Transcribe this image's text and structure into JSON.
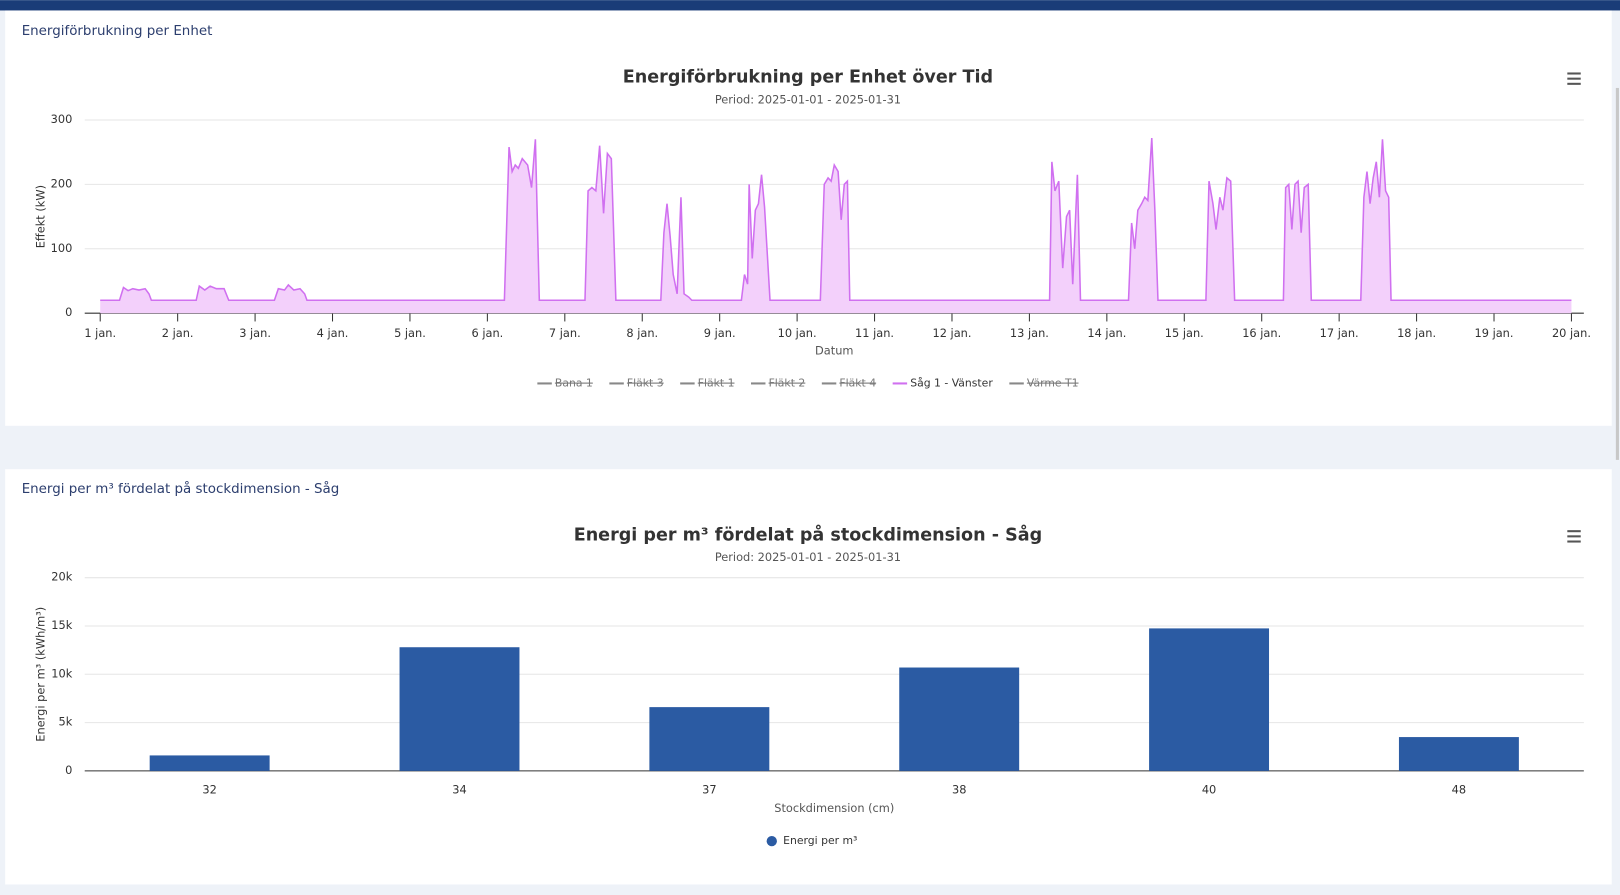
{
  "panels": [
    {
      "title": "Energiförbrukning per Enhet"
    },
    {
      "title": "Energi per m³ fördelat på stockdimension - Såg"
    }
  ],
  "chart_data": [
    {
      "type": "line",
      "title": "Energiförbrukning per Enhet över Tid",
      "subtitle": "Period: 2025-01-01 - 2025-01-31",
      "x_label": "Datum",
      "y_label": "Effekt (kW)",
      "xlim": [
        1,
        20
      ],
      "ylim": [
        0,
        300
      ],
      "yticks": [
        0,
        100,
        200,
        300
      ],
      "grid": true,
      "xticks": [
        {
          "value": 1,
          "label": "1 jan."
        },
        {
          "value": 2,
          "label": "2 jan."
        },
        {
          "value": 3,
          "label": "3 jan."
        },
        {
          "value": 4,
          "label": "4 jan."
        },
        {
          "value": 5,
          "label": "5 jan."
        },
        {
          "value": 6,
          "label": "6 jan."
        },
        {
          "value": 7,
          "label": "7 jan."
        },
        {
          "value": 8,
          "label": "8 jan."
        },
        {
          "value": 9,
          "label": "9 jan."
        },
        {
          "value": 10,
          "label": "10 jan."
        },
        {
          "value": 11,
          "label": "11 jan."
        },
        {
          "value": 12,
          "label": "12 jan."
        },
        {
          "value": 13,
          "label": "13 jan."
        },
        {
          "value": 14,
          "label": "14 jan."
        },
        {
          "value": 15,
          "label": "15 jan."
        },
        {
          "value": 16,
          "label": "16 jan."
        },
        {
          "value": 17,
          "label": "17 jan."
        },
        {
          "value": 18,
          "label": "18 jan."
        },
        {
          "value": 19,
          "label": "19 jan."
        },
        {
          "value": 20,
          "label": "20 jan."
        }
      ],
      "x": [
        1.0,
        1.25,
        1.3,
        1.36,
        1.42,
        1.5,
        1.58,
        1.63,
        1.66,
        2.24,
        2.28,
        2.35,
        2.42,
        2.5,
        2.6,
        2.66,
        3.25,
        3.3,
        3.38,
        3.43,
        3.5,
        3.58,
        3.64,
        3.67,
        6.22,
        6.28,
        6.32,
        6.36,
        6.4,
        6.45,
        6.52,
        6.57,
        6.62,
        6.67,
        7.26,
        7.3,
        7.35,
        7.4,
        7.45,
        7.5,
        7.55,
        7.6,
        7.66,
        8.24,
        8.28,
        8.32,
        8.36,
        8.4,
        8.45,
        8.5,
        8.54,
        8.6,
        8.64,
        9.28,
        9.32,
        9.36,
        9.38,
        9.42,
        9.46,
        9.5,
        9.54,
        9.58,
        9.65,
        10.3,
        10.35,
        10.4,
        10.44,
        10.48,
        10.53,
        10.57,
        10.61,
        10.65,
        10.68,
        13.26,
        13.29,
        13.33,
        13.38,
        13.43,
        13.48,
        13.52,
        13.56,
        13.62,
        13.66,
        14.28,
        14.32,
        14.36,
        14.4,
        14.45,
        14.49,
        14.53,
        14.58,
        14.62,
        14.66,
        15.28,
        15.32,
        15.37,
        15.41,
        15.46,
        15.5,
        15.55,
        15.6,
        15.65,
        16.28,
        16.31,
        16.35,
        16.39,
        16.43,
        16.47,
        16.51,
        16.55,
        16.6,
        16.64,
        17.28,
        17.32,
        17.36,
        17.4,
        17.44,
        17.48,
        17.52,
        17.56,
        17.6,
        17.64,
        17.67,
        20.0
      ],
      "series": [
        {
          "name": "Bana 1",
          "color": "#666666",
          "hidden": true
        },
        {
          "name": "Fläkt 3",
          "color": "#666666",
          "hidden": true
        },
        {
          "name": "Fläkt 1",
          "color": "#666666",
          "hidden": true
        },
        {
          "name": "Fläkt 2",
          "color": "#666666",
          "hidden": true
        },
        {
          "name": "Fläkt 4",
          "color": "#666666",
          "hidden": true
        },
        {
          "name": "Såg 1 - Vänster",
          "color": "#d070f0",
          "fill": "#f3d0fb",
          "values": [
            20,
            20,
            40,
            35,
            38,
            36,
            38,
            30,
            20,
            20,
            42,
            36,
            42,
            38,
            38,
            20,
            20,
            38,
            36,
            44,
            36,
            38,
            30,
            20,
            20,
            258,
            220,
            230,
            225,
            240,
            230,
            195,
            270,
            20,
            20,
            190,
            195,
            190,
            260,
            155,
            248,
            240,
            20,
            20,
            125,
            170,
            120,
            60,
            30,
            180,
            30,
            25,
            20,
            20,
            60,
            45,
            200,
            85,
            160,
            170,
            215,
            165,
            20,
            20,
            200,
            210,
            205,
            230,
            220,
            145,
            200,
            205,
            20,
            20,
            235,
            190,
            205,
            70,
            150,
            160,
            45,
            215,
            20,
            20,
            140,
            100,
            160,
            170,
            180,
            175,
            272,
            160,
            20,
            20,
            205,
            170,
            130,
            180,
            160,
            210,
            205,
            20,
            20,
            195,
            200,
            130,
            200,
            205,
            125,
            195,
            200,
            20,
            20,
            180,
            220,
            170,
            210,
            235,
            180,
            270,
            190,
            180,
            20,
            20
          ]
        },
        {
          "name": "Värme T1",
          "color": "#666666",
          "hidden": true
        }
      ]
    },
    {
      "type": "bar",
      "title": "Energi per m³ fördelat på stockdimension - Såg",
      "subtitle": "Period: 2025-01-01 - 2025-01-31",
      "x_label": "Stockdimension (cm)",
      "y_label": "Energi per m³ (kWh/m³)",
      "categories": [
        "32",
        "34",
        "37",
        "38",
        "40",
        "48"
      ],
      "series": [
        {
          "name": "Energi per m³",
          "color": "#2b5ba3",
          "values": [
            1600,
            12800,
            6600,
            10700,
            14750,
            3500
          ]
        }
      ],
      "ylim": [
        0,
        20000
      ],
      "grid": true,
      "yticks": [
        0,
        {
          "value": 5000,
          "label": "5k"
        },
        {
          "value": 10000,
          "label": "10k"
        },
        {
          "value": 15000,
          "label": "15k"
        },
        {
          "value": 20000,
          "label": "20k"
        }
      ]
    }
  ]
}
